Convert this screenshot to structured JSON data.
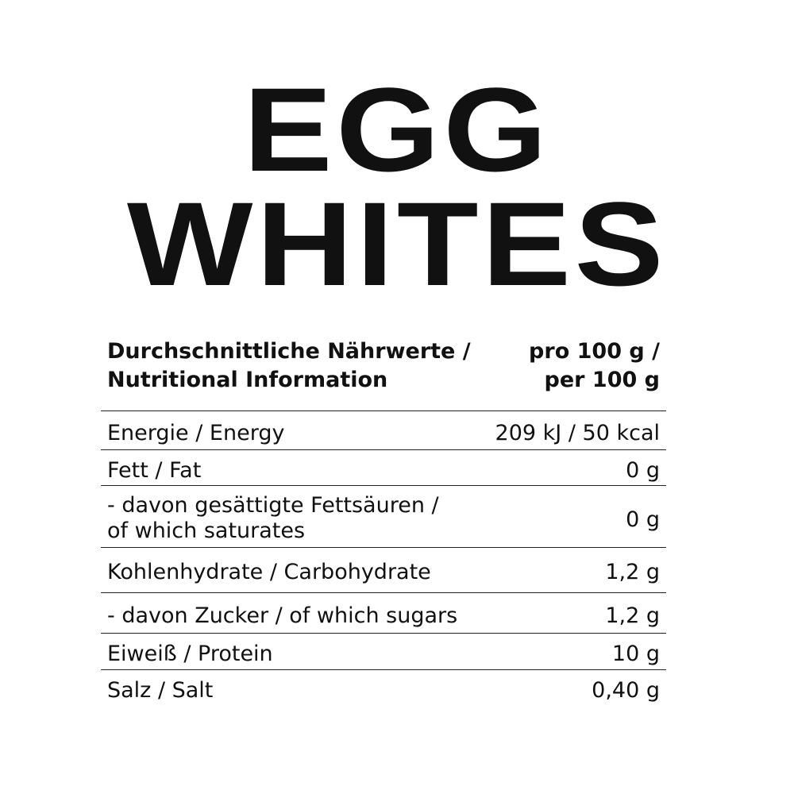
{
  "title": {
    "line1": "EGG",
    "line2": "WHITES"
  },
  "header": {
    "label_de": "Durchschnittliche Nährwerte /",
    "label_en": "Nutritional Information",
    "per_de": "pro 100 g /",
    "per_en": "per 100 g"
  },
  "rows": [
    {
      "label": "Energie / Energy",
      "value": "209 kJ / 50 kcal"
    },
    {
      "label": "Fett / Fat",
      "value": "0 g"
    },
    {
      "label": "- davon gesättigte Fettsäuren /",
      "label2": "of which saturates",
      "value": "0 g"
    },
    {
      "label": "Kohlenhydrate / Carbohydrate",
      "value": "1,2 g"
    },
    {
      "label": "- davon Zucker / of which sugars",
      "value": "1,2 g"
    },
    {
      "label": "Eiweiß / Protein",
      "value": "10 g"
    },
    {
      "label": "Salz / Salt",
      "value": "0,40 g"
    }
  ]
}
